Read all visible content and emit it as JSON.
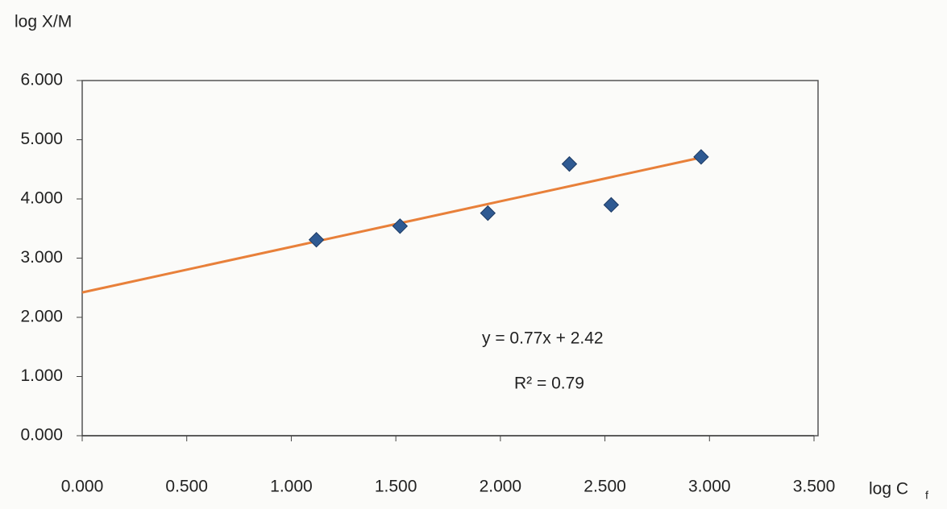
{
  "chart_data": {
    "type": "scatter",
    "y_label": "log X/M",
    "x_label": "log C",
    "x_label_sub": "f",
    "x": [
      1.12,
      1.52,
      1.94,
      2.33,
      2.53,
      2.96
    ],
    "values": [
      3.31,
      3.54,
      3.76,
      4.59,
      3.9,
      4.71
    ],
    "color": "#2f5a92",
    "trendline": {
      "slope": 0.77,
      "intercept": 2.42,
      "x": [
        0,
        2.96
      ],
      "color": "#e8803a"
    },
    "equation": "y = 0.77x + 2.42",
    "r2_label": "R² = 0.79",
    "xlim": [
      0,
      3.5
    ],
    "ylim": [
      0,
      6
    ],
    "xticks": [
      {
        "value": 0,
        "label": "0.000"
      },
      {
        "value": 0.5,
        "label": "0.500"
      },
      {
        "value": 1,
        "label": "1.000"
      },
      {
        "value": 1.5,
        "label": "1.500"
      },
      {
        "value": 2,
        "label": "2.000"
      },
      {
        "value": 2.5,
        "label": "2.500"
      },
      {
        "value": 3,
        "label": "3.000"
      },
      {
        "value": 3.5,
        "label": "3.500"
      }
    ],
    "yticks": [
      {
        "value": 0,
        "label": "0.000"
      },
      {
        "value": 1,
        "label": "1.000"
      },
      {
        "value": 2,
        "label": "2.000"
      },
      {
        "value": 3,
        "label": "3.000"
      },
      {
        "value": 4,
        "label": "4.000"
      },
      {
        "value": 5,
        "label": "5.000"
      },
      {
        "value": 6,
        "label": "6.000"
      }
    ]
  }
}
